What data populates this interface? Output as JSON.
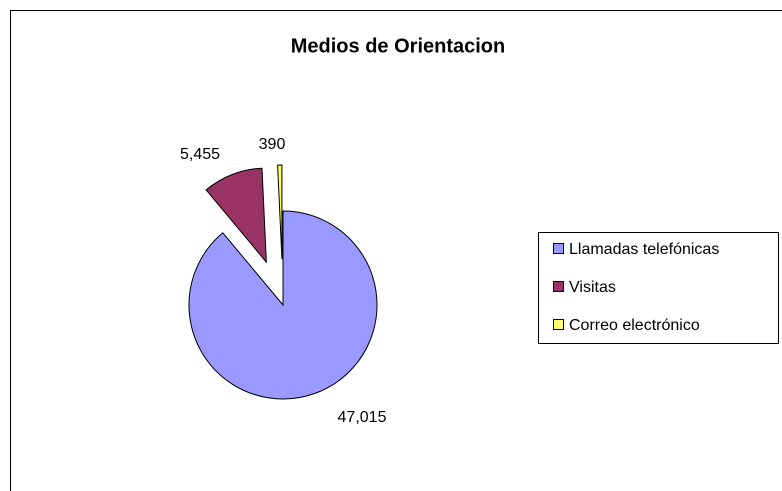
{
  "chart_data": {
    "type": "pie",
    "title": "Medios de Orientacion",
    "categories": [
      "Llamadas telefónicas",
      "Visitas",
      "Correo electrónico"
    ],
    "values": [
      47015,
      5455,
      390
    ],
    "value_labels": [
      "47,015",
      "5,455",
      "390"
    ],
    "colors": [
      "#9999ff",
      "#993366",
      "#ffff66"
    ],
    "legend": "right"
  }
}
